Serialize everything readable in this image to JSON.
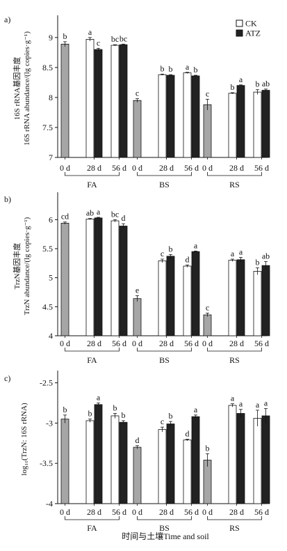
{
  "figure": {
    "xlabel": "时间与土壤Time and soil"
  },
  "legend": {
    "items": [
      {
        "label": "CK",
        "color": "#ffffff"
      },
      {
        "label": "ATZ",
        "color": "#222222"
      }
    ]
  },
  "colors": {
    "ck_fill": "#ffffff",
    "atz_fill": "#222222",
    "zero_day_fill": "#a6a6a6",
    "axis": "#111111"
  },
  "chart_data": [
    {
      "type": "bar",
      "panel_label": "a)",
      "ylabel_line1": "16S rRNA基因丰度",
      "ylabel_line2": "16S rRNA abundance/(lg copies·g⁻¹)",
      "ylim": [
        7,
        9.3
      ],
      "yticks": [
        7,
        7.5,
        8,
        8.5,
        9
      ],
      "ytick_labels": [
        "7",
        "7.5",
        "8",
        "8.5",
        "9"
      ],
      "groups": [
        "FA",
        "BS",
        "RS"
      ],
      "categories": [
        "0 d",
        "28 d",
        "56 d"
      ],
      "bars": [
        {
          "group": "FA",
          "time": "0 d",
          "series": "0d",
          "value": 8.89,
          "error": 0.04,
          "letter": "b"
        },
        {
          "group": "FA",
          "time": "28 d",
          "series": "CK",
          "value": 8.97,
          "error": 0.03,
          "letter": "a"
        },
        {
          "group": "FA",
          "time": "28 d",
          "series": "ATZ",
          "value": 8.8,
          "error": 0.02,
          "letter": "c"
        },
        {
          "group": "FA",
          "time": "56 d",
          "series": "CK",
          "value": 8.87,
          "error": 0.01,
          "letter": "bc"
        },
        {
          "group": "FA",
          "time": "56 d",
          "series": "ATZ",
          "value": 8.88,
          "error": 0.01,
          "letter": "bc"
        },
        {
          "group": "BS",
          "time": "0 d",
          "series": "0d",
          "value": 7.95,
          "error": 0.03,
          "letter": "c"
        },
        {
          "group": "BS",
          "time": "28 d",
          "series": "CK",
          "value": 8.38,
          "error": 0.01,
          "letter": "b"
        },
        {
          "group": "BS",
          "time": "28 d",
          "series": "ATZ",
          "value": 8.37,
          "error": 0.01,
          "letter": "b"
        },
        {
          "group": "BS",
          "time": "56 d",
          "series": "CK",
          "value": 8.41,
          "error": 0.01,
          "letter": "a"
        },
        {
          "group": "BS",
          "time": "56 d",
          "series": "ATZ",
          "value": 8.36,
          "error": 0.01,
          "letter": "b"
        },
        {
          "group": "RS",
          "time": "0 d",
          "series": "0d",
          "value": 7.88,
          "error": 0.09,
          "letter": "c"
        },
        {
          "group": "RS",
          "time": "28 d",
          "series": "CK",
          "value": 8.07,
          "error": 0.01,
          "letter": "b"
        },
        {
          "group": "RS",
          "time": "28 d",
          "series": "ATZ",
          "value": 8.2,
          "error": 0.01,
          "letter": "a"
        },
        {
          "group": "RS",
          "time": "56 d",
          "series": "CK",
          "value": 8.09,
          "error": 0.04,
          "letter": "b"
        },
        {
          "group": "RS",
          "time": "56 d",
          "series": "ATZ",
          "value": 8.12,
          "error": 0.02,
          "letter": "ab"
        }
      ]
    },
    {
      "type": "bar",
      "panel_label": "b)",
      "ylabel_line1": "TrzN基因丰度",
      "ylabel_line2": "TrzN abundance/(lg copies·g⁻¹)",
      "ylim": [
        4,
        6.4
      ],
      "yticks": [
        4,
        4.5,
        5,
        5.5,
        6
      ],
      "ytick_labels": [
        "4",
        "4.5",
        "5",
        "5.5",
        "6"
      ],
      "groups": [
        "FA",
        "BS",
        "RS"
      ],
      "categories": [
        "0 d",
        "28 d",
        "56 d"
      ],
      "bars": [
        {
          "group": "FA",
          "time": "0 d",
          "series": "0d",
          "value": 5.94,
          "error": 0.02,
          "letter": "cd"
        },
        {
          "group": "FA",
          "time": "28 d",
          "series": "CK",
          "value": 6.01,
          "error": 0.01,
          "letter": "ab"
        },
        {
          "group": "FA",
          "time": "28 d",
          "series": "ATZ",
          "value": 6.03,
          "error": 0.01,
          "letter": "a"
        },
        {
          "group": "FA",
          "time": "56 d",
          "series": "CK",
          "value": 5.98,
          "error": 0.02,
          "letter": "bc"
        },
        {
          "group": "FA",
          "time": "56 d",
          "series": "ATZ",
          "value": 5.89,
          "error": 0.04,
          "letter": "d"
        },
        {
          "group": "BS",
          "time": "0 d",
          "series": "0d",
          "value": 4.64,
          "error": 0.05,
          "letter": "e"
        },
        {
          "group": "BS",
          "time": "28 d",
          "series": "CK",
          "value": 5.29,
          "error": 0.03,
          "letter": "c"
        },
        {
          "group": "BS",
          "time": "28 d",
          "series": "ATZ",
          "value": 5.37,
          "error": 0.03,
          "letter": "b"
        },
        {
          "group": "BS",
          "time": "56 d",
          "series": "CK",
          "value": 5.2,
          "error": 0.02,
          "letter": "d"
        },
        {
          "group": "BS",
          "time": "56 d",
          "series": "ATZ",
          "value": 5.45,
          "error": 0.01,
          "letter": "a"
        },
        {
          "group": "RS",
          "time": "0 d",
          "series": "0d",
          "value": 4.36,
          "error": 0.03,
          "letter": "c"
        },
        {
          "group": "RS",
          "time": "28 d",
          "series": "CK",
          "value": 5.3,
          "error": 0.02,
          "letter": "a"
        },
        {
          "group": "RS",
          "time": "28 d",
          "series": "ATZ",
          "value": 5.31,
          "error": 0.04,
          "letter": "a"
        },
        {
          "group": "RS",
          "time": "56 d",
          "series": "CK",
          "value": 5.11,
          "error": 0.06,
          "letter": "b"
        },
        {
          "group": "RS",
          "time": "56 d",
          "series": "ATZ",
          "value": 5.21,
          "error": 0.07,
          "letter": "ab"
        }
      ]
    },
    {
      "type": "bar",
      "panel_label": "c)",
      "ylabel_line1": "log₁₀(TrzN: 16S rRNA)",
      "ylabel_line2": "",
      "ylim": [
        -4,
        -2.4
      ],
      "yticks": [
        -4,
        -3.5,
        -3,
        -2.5
      ],
      "ytick_labels": [
        "-4",
        "-3.5",
        "-3",
        "-2.5"
      ],
      "groups": [
        "FA",
        "BS",
        "RS"
      ],
      "categories": [
        "0 d",
        "28 d",
        "56 d"
      ],
      "bars": [
        {
          "group": "FA",
          "time": "0 d",
          "series": "0d",
          "value": -2.95,
          "error": 0.05,
          "letter": "b"
        },
        {
          "group": "FA",
          "time": "28 d",
          "series": "CK",
          "value": -2.97,
          "error": 0.02,
          "letter": "b"
        },
        {
          "group": "FA",
          "time": "28 d",
          "series": "ATZ",
          "value": -2.77,
          "error": 0.02,
          "letter": "a"
        },
        {
          "group": "FA",
          "time": "56 d",
          "series": "CK",
          "value": -2.91,
          "error": 0.03,
          "letter": "b"
        },
        {
          "group": "FA",
          "time": "56 d",
          "series": "ATZ",
          "value": -2.99,
          "error": 0.02,
          "letter": "b"
        },
        {
          "group": "BS",
          "time": "0 d",
          "series": "0d",
          "value": -3.3,
          "error": 0.02,
          "letter": "d"
        },
        {
          "group": "BS",
          "time": "28 d",
          "series": "CK",
          "value": -3.08,
          "error": 0.03,
          "letter": "c"
        },
        {
          "group": "BS",
          "time": "28 d",
          "series": "ATZ",
          "value": -3.01,
          "error": 0.03,
          "letter": "b"
        },
        {
          "group": "BS",
          "time": "56 d",
          "series": "CK",
          "value": -3.21,
          "error": 0.01,
          "letter": "d"
        },
        {
          "group": "BS",
          "time": "56 d",
          "series": "ATZ",
          "value": -2.92,
          "error": 0.02,
          "letter": "a"
        },
        {
          "group": "RS",
          "time": "0 d",
          "series": "0d",
          "value": -3.46,
          "error": 0.08,
          "letter": "b"
        },
        {
          "group": "RS",
          "time": "28 d",
          "series": "CK",
          "value": -2.78,
          "error": 0.02,
          "letter": "a"
        },
        {
          "group": "RS",
          "time": "28 d",
          "series": "ATZ",
          "value": -2.88,
          "error": 0.05,
          "letter": "a"
        },
        {
          "group": "RS",
          "time": "56 d",
          "series": "CK",
          "value": -2.94,
          "error": 0.1,
          "letter": "a"
        },
        {
          "group": "RS",
          "time": "56 d",
          "series": "ATZ",
          "value": -2.91,
          "error": 0.09,
          "letter": "a"
        }
      ]
    }
  ]
}
